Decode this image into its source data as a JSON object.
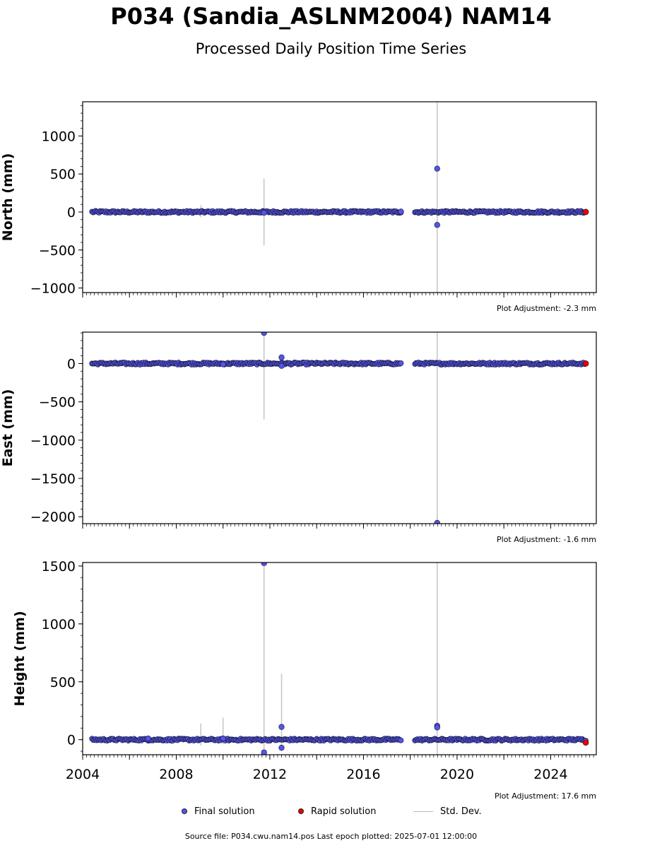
{
  "title": "P034 (Sandia_ASLNM2004) NAM14",
  "subtitle": "Processed Daily Position Time Series",
  "colors": {
    "final": "#5555ee",
    "rapid": "#ee0000",
    "stddev": "#bbbbbb"
  },
  "legend": {
    "final_label": "Final solution",
    "rapid_label": "Rapid solution",
    "stddev_label": "Std. Dev."
  },
  "source_note": "Source file: P034.cwu.nam14.pos  Last epoch plotted: 2025-07-01 12:00:00",
  "chart_data": [
    {
      "type": "scatter",
      "ylabel": "North (mm)",
      "adjustment_label": "Plot Adjustment: -2.3 mm",
      "xlim": [
        2004.0,
        2025.95
      ],
      "ylim": [
        -1060,
        1450
      ],
      "yticks": [
        1000,
        500,
        0,
        -500,
        -1000
      ],
      "ytick_labels": [
        "1000",
        "500",
        "0",
        "−500",
        "−1000"
      ],
      "x_tick_labels_shown": false,
      "segments": [
        {
          "x_start": 2004.4,
          "x_end": 2017.6
        },
        {
          "x_start": 2018.2,
          "x_end": 2025.5
        }
      ],
      "outliers": [
        {
          "x": 2019.15,
          "y": 570
        },
        {
          "x": 2019.15,
          "y": -170
        },
        {
          "x": 2011.75,
          "y": -10
        },
        {
          "x": 2017.6,
          "y": 5
        }
      ],
      "stddev_bars": [
        {
          "x": 2019.15,
          "low": -1060,
          "high": 1450
        },
        {
          "x": 2011.75,
          "low": -440,
          "high": 440
        },
        {
          "x": 2009.05,
          "low": -70,
          "high": 90
        }
      ],
      "rapid_points": [
        {
          "x": 2025.5,
          "y": 0
        }
      ]
    },
    {
      "type": "scatter",
      "ylabel": "East (mm)",
      "adjustment_label": "Plot Adjustment: -1.6 mm",
      "xlim": [
        2004.0,
        2025.95
      ],
      "ylim": [
        -2090,
        410
      ],
      "yticks": [
        0,
        -500,
        -1000,
        -1500,
        -2000
      ],
      "ytick_labels": [
        "0",
        "−500",
        "−1000",
        "−1500",
        "−2000"
      ],
      "x_tick_labels_shown": false,
      "segments": [
        {
          "x_start": 2004.4,
          "x_end": 2017.6
        },
        {
          "x_start": 2018.2,
          "x_end": 2025.5
        }
      ],
      "outliers": [
        {
          "x": 2011.75,
          "y": 400
        },
        {
          "x": 2012.5,
          "y": 80
        },
        {
          "x": 2012.5,
          "y": -30
        },
        {
          "x": 2019.15,
          "y": -2080
        },
        {
          "x": 2010.0,
          "y": -10
        }
      ],
      "stddev_bars": [
        {
          "x": 2019.15,
          "low": -2090,
          "high": 410
        },
        {
          "x": 2011.75,
          "low": -730,
          "high": 400
        }
      ],
      "rapid_points": [
        {
          "x": 2025.5,
          "y": 0
        }
      ]
    },
    {
      "type": "scatter",
      "ylabel": "Height (mm)",
      "adjustment_label": "Plot Adjustment: 17.6 mm",
      "xlim": [
        2004.0,
        2025.95
      ],
      "ylim": [
        -130,
        1530
      ],
      "yticks": [
        1500,
        1000,
        500,
        0
      ],
      "ytick_labels": [
        "1500",
        "1000",
        "500",
        "0"
      ],
      "xticks": [
        2004,
        2008,
        2012,
        2016,
        2020,
        2024
      ],
      "xtick_labels": [
        "2004",
        "2008",
        "2012",
        "2016",
        "2020",
        "2024"
      ],
      "x_tick_labels_shown": true,
      "segments": [
        {
          "x_start": 2004.4,
          "x_end": 2017.6
        },
        {
          "x_start": 2018.2,
          "x_end": 2025.5
        }
      ],
      "outliers": [
        {
          "x": 2011.75,
          "y": 1525
        },
        {
          "x": 2011.75,
          "y": -110
        },
        {
          "x": 2012.5,
          "y": 110
        },
        {
          "x": 2012.5,
          "y": -70
        },
        {
          "x": 2019.15,
          "y": 120
        },
        {
          "x": 2019.15,
          "y": 105
        },
        {
          "x": 2010.0,
          "y": 10
        },
        {
          "x": 2006.8,
          "y": 10
        }
      ],
      "stddev_bars": [
        {
          "x": 2019.15,
          "low": -130,
          "high": 1530
        },
        {
          "x": 2011.75,
          "low": -130,
          "high": 1530
        },
        {
          "x": 2012.5,
          "low": -60,
          "high": 570
        },
        {
          "x": 2009.05,
          "low": -50,
          "high": 140
        },
        {
          "x": 2010.0,
          "low": -40,
          "high": 190
        }
      ],
      "rapid_points": [
        {
          "x": 2025.5,
          "y": -25
        }
      ]
    }
  ]
}
